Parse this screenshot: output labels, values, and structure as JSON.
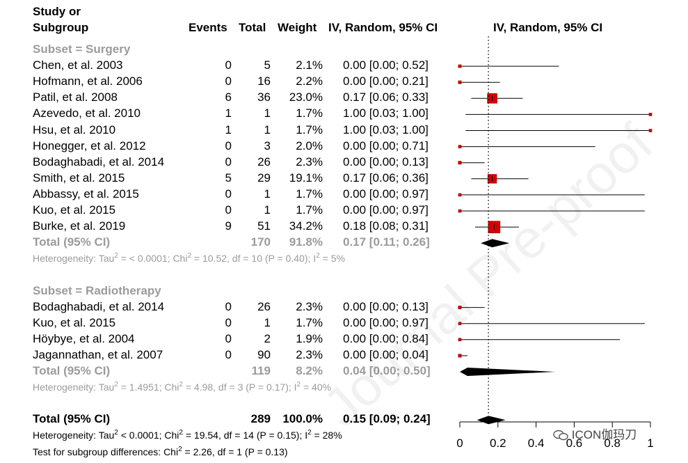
{
  "header": {
    "study_l1": "Study or",
    "study_l2": "Subgroup",
    "events": "Events",
    "total": "Total",
    "weight": "Weight",
    "ci": "IV, Random, 95% CI",
    "plot": "IV, Random, 95% CI"
  },
  "watermark": "Journal Pre-proof",
  "brand": "ICON伽玛刀",
  "chart_data": {
    "type": "forest",
    "xlim": [
      0,
      1
    ],
    "xticks": [
      "0",
      "0.2",
      "0.4",
      "0.6",
      "0.8",
      "1"
    ],
    "reference_line": 0.15,
    "rows": [
      {
        "kind": "subgroup",
        "label": "Subset = Surgery"
      },
      {
        "kind": "study",
        "label": "Chen, et al. 2003",
        "events": "0",
        "total": "5",
        "weight": "2.1%",
        "ci": "0.00 [0.00; 0.52]",
        "est": 0.0,
        "lo": 0.0,
        "hi": 0.52,
        "w": 2.1
      },
      {
        "kind": "study",
        "label": "Hofmann, et al. 2006",
        "events": "0",
        "total": "16",
        "weight": "2.2%",
        "ci": "0.00 [0.00; 0.21]",
        "est": 0.0,
        "lo": 0.0,
        "hi": 0.21,
        "w": 2.2
      },
      {
        "kind": "study",
        "label": "Patil, et al. 2008",
        "events": "6",
        "total": "36",
        "weight": "23.0%",
        "ci": "0.17 [0.06; 0.33]",
        "est": 0.17,
        "lo": 0.06,
        "hi": 0.33,
        "w": 23.0
      },
      {
        "kind": "study",
        "label": "Azevedo, et al. 2010",
        "events": "1",
        "total": "1",
        "weight": "1.7%",
        "ci": "1.00 [0.03; 1.00]",
        "est": 1.0,
        "lo": 0.03,
        "hi": 1.0,
        "w": 1.7
      },
      {
        "kind": "study",
        "label": "Hsu, et al. 2010",
        "events": "1",
        "total": "1",
        "weight": "1.7%",
        "ci": "1.00 [0.03; 1.00]",
        "est": 1.0,
        "lo": 0.03,
        "hi": 1.0,
        "w": 1.7
      },
      {
        "kind": "study",
        "label": "Honegger, et al. 2012",
        "events": "0",
        "total": "3",
        "weight": "2.0%",
        "ci": "0.00 [0.00; 0.71]",
        "est": 0.0,
        "lo": 0.0,
        "hi": 0.71,
        "w": 2.0
      },
      {
        "kind": "study",
        "label": "Bodaghabadi, et al. 2014",
        "events": "0",
        "total": "26",
        "weight": "2.3%",
        "ci": "0.00 [0.00; 0.13]",
        "est": 0.0,
        "lo": 0.0,
        "hi": 0.13,
        "w": 2.3
      },
      {
        "kind": "study",
        "label": "Smith, et al. 2015",
        "events": "5",
        "total": "29",
        "weight": "19.1%",
        "ci": "0.17 [0.06; 0.36]",
        "est": 0.17,
        "lo": 0.06,
        "hi": 0.36,
        "w": 19.1
      },
      {
        "kind": "study",
        "label": "Abbassy, et al. 2015",
        "events": "0",
        "total": "1",
        "weight": "1.7%",
        "ci": "0.00 [0.00; 0.97]",
        "est": 0.0,
        "lo": 0.0,
        "hi": 0.97,
        "w": 1.7
      },
      {
        "kind": "study",
        "label": "Kuo, et al. 2015",
        "events": "0",
        "total": "1",
        "weight": "1.7%",
        "ci": "0.00 [0.00; 0.97]",
        "est": 0.0,
        "lo": 0.0,
        "hi": 0.97,
        "w": 1.7
      },
      {
        "kind": "study",
        "label": "Burke, et al. 2019",
        "events": "9",
        "total": "51",
        "weight": "34.2%",
        "ci": "0.18 [0.08; 0.31]",
        "est": 0.18,
        "lo": 0.08,
        "hi": 0.31,
        "w": 34.2
      },
      {
        "kind": "subtotal",
        "label": "Total (95% CI)",
        "total": "170",
        "weight": "91.8%",
        "ci": "0.17 [0.11; 0.26]",
        "est": 0.17,
        "lo": 0.11,
        "hi": 0.26
      },
      {
        "kind": "heterogeneity",
        "parts": [
          "Heterogeneity: Tau",
          "2",
          " = < 0.0001; Chi",
          "2",
          " = 10.52, df = 10 (P = 0.40); I",
          "2",
          " = 5%"
        ]
      },
      {
        "kind": "blank"
      },
      {
        "kind": "subgroup",
        "label": "Subset = Radiotherapy"
      },
      {
        "kind": "study",
        "label": "Bodaghabadi, et al. 2014",
        "events": "0",
        "total": "26",
        "weight": "2.3%",
        "ci": "0.00 [0.00; 0.13]",
        "est": 0.0,
        "lo": 0.0,
        "hi": 0.13,
        "w": 2.3
      },
      {
        "kind": "study",
        "label": "Kuo, et al. 2015",
        "events": "0",
        "total": "1",
        "weight": "1.7%",
        "ci": "0.00 [0.00; 0.97]",
        "est": 0.0,
        "lo": 0.0,
        "hi": 0.97,
        "w": 1.7
      },
      {
        "kind": "study",
        "label": "Höybye, et al. 2004",
        "events": "0",
        "total": "2",
        "weight": "1.9%",
        "ci": "0.00 [0.00; 0.84]",
        "est": 0.0,
        "lo": 0.0,
        "hi": 0.84,
        "w": 1.9
      },
      {
        "kind": "study",
        "label": "Jagannathan, et al. 2007",
        "events": "0",
        "total": "90",
        "weight": "2.3%",
        "ci": "0.00 [0.00; 0.04]",
        "est": 0.0,
        "lo": 0.0,
        "hi": 0.04,
        "w": 2.3
      },
      {
        "kind": "subtotal",
        "label": "Total (95% CI)",
        "total": "119",
        "weight": "8.2%",
        "ci": "0.04 [0.00; 0.50]",
        "est": 0.04,
        "lo": 0.0,
        "hi": 0.5
      },
      {
        "kind": "heterogeneity",
        "parts": [
          "Heterogeneity: Tau",
          "2",
          " = 1.4951; Chi",
          "2",
          " = 4.98, df = 3 (P = 0.17); I",
          "2",
          " = 40%"
        ]
      },
      {
        "kind": "blank"
      },
      {
        "kind": "overall",
        "label": "Total (95% CI)",
        "total": "289",
        "weight": "100.0%",
        "ci": "0.15 [0.09; 0.24]",
        "est": 0.15,
        "lo": 0.09,
        "hi": 0.24
      },
      {
        "kind": "footer",
        "parts": [
          "Heterogeneity: Tau",
          "2",
          " < 0.0001; Chi",
          "2",
          " = 19.54, df = 14 (P = 0.15); I",
          "2",
          " = 28%"
        ]
      },
      {
        "kind": "footer",
        "parts": [
          "Test for subgroup differences: Chi",
          "2",
          " = 2.26, df = 1 (P = 0.13)"
        ]
      }
    ]
  }
}
